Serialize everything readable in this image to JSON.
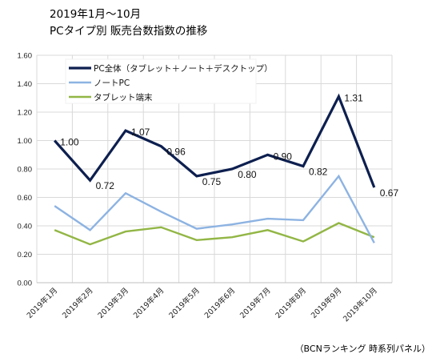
{
  "title_lines": [
    "2019年1月～10月",
    "PCタイプ別 販売台数指数の推移"
  ],
  "source_note": "（BCNランキング 時系列パネル）",
  "colors": {
    "grid": "#d9d9d9",
    "axis": "#bfbfbf"
  },
  "chart_data": {
    "type": "line",
    "title": "2019年1月～10月 PCタイプ別 販売台数指数の推移",
    "categories": [
      "2019年1月",
      "2019年2月",
      "2019年3月",
      "2019年4月",
      "2019年5月",
      "2019年6月",
      "2019年7月",
      "2019年8月",
      "2019年9月",
      "2019年10月"
    ],
    "ylim": [
      0,
      1.6
    ],
    "yticks": [
      "0.00",
      "0.20",
      "0.40",
      "0.60",
      "0.80",
      "1.00",
      "1.20",
      "1.40",
      "1.60"
    ],
    "grid": true,
    "legend_position": "top-left",
    "series": [
      {
        "name": "PC全体（タブレット＋ノート＋デスクトップ）",
        "color": "#0d1f4f",
        "values": [
          1.0,
          0.72,
          1.07,
          0.96,
          0.75,
          0.8,
          0.9,
          0.82,
          1.31,
          0.67
        ],
        "labels": [
          "1.00",
          "0.72",
          "1.07",
          "0.96",
          "0.75",
          "0.80",
          "0.90",
          "0.82",
          "1.31",
          "0.67"
        ]
      },
      {
        "name": "ノートPC",
        "color": "#8db3e2",
        "values": [
          0.54,
          0.37,
          0.63,
          0.5,
          0.38,
          0.41,
          0.45,
          0.44,
          0.75,
          0.28
        ]
      },
      {
        "name": "タブレット端末",
        "color": "#92b645",
        "values": [
          0.37,
          0.27,
          0.36,
          0.39,
          0.3,
          0.32,
          0.37,
          0.29,
          0.42,
          0.32
        ]
      }
    ]
  }
}
